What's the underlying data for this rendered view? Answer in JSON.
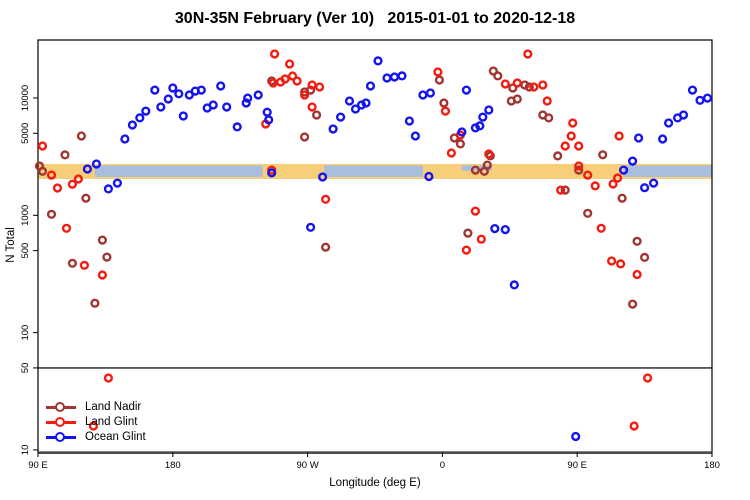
{
  "title": "30N-35N February (Ver 10)   2015-01-01 to 2020-12-18",
  "axes": {
    "xlabel": "Longitude (deg E)",
    "ylabel": "N Total",
    "x_note": "longitude unwrapped, 90E eastward to 180 (values 90..540)",
    "x_range": [
      90,
      540
    ],
    "x_ticks": [
      {
        "v": 90,
        "label": "90 E"
      },
      {
        "v": 180,
        "label": "180"
      },
      {
        "v": 270,
        "label": "90 W"
      },
      {
        "v": 360,
        "label": "0"
      },
      {
        "v": 450,
        "label": "90 E"
      },
      {
        "v": 540,
        "label": "180"
      }
    ],
    "y_scale": "log10",
    "y_range": [
      10,
      31000
    ],
    "y_ticks": [
      10,
      50,
      100,
      500,
      1000,
      5000,
      10000
    ]
  },
  "reference_line": {
    "n": 50,
    "color": "#3f3f3f"
  },
  "bands": {
    "gold": {
      "color": "#F7CE79",
      "lon": [
        90,
        540
      ],
      "n_low": 2040,
      "n_high": 2740
    },
    "blue": {
      "color": "#A9BEDC",
      "n_low": 2120,
      "n_high": 2660,
      "segments_lon": [
        [
          128,
          240
        ],
        [
          281,
          347
        ],
        [
          481,
          540
        ]
      ],
      "notch": {
        "lon": [
          373,
          393
        ],
        "n_low": 2400,
        "n_high": 2660
      }
    }
  },
  "legend": {
    "items": [
      {
        "label": "Land Nadir",
        "color": "#A13532"
      },
      {
        "label": "Land Glint",
        "color": "#F51B0F"
      },
      {
        "label": "Ocean Glint",
        "color": "#1414F0"
      }
    ]
  },
  "chart_data": {
    "type": "scatter",
    "title": "30N-35N February (Ver 10)   2015-01-01 to 2020-12-18",
    "xlabel": "Longitude (deg E)",
    "ylabel": "N Total",
    "x_encoding": "degrees east unwrapped (90..540)",
    "series": [
      {
        "name": "Land Nadir",
        "color": "#A13532",
        "points": [
          [
            119,
            4740
          ],
          [
            108,
            3270
          ],
          [
            91,
            2630
          ],
          [
            93,
            2370
          ],
          [
            122,
            1400
          ],
          [
            99,
            1020
          ],
          [
            133,
            615
          ],
          [
            136,
            440
          ],
          [
            113,
            390
          ],
          [
            128,
            178
          ],
          [
            246,
            13960
          ],
          [
            268,
            11250
          ],
          [
            272,
            11680
          ],
          [
            276,
            7160
          ],
          [
            268,
            4650
          ],
          [
            282,
            535
          ],
          [
            358,
            14240
          ],
          [
            361,
            9070
          ],
          [
            368,
            4560
          ],
          [
            372,
            4060
          ],
          [
            382,
            2430
          ],
          [
            388,
            2370
          ],
          [
            394,
            16980
          ],
          [
            397,
            15420
          ],
          [
            407,
            12170
          ],
          [
            415,
            12900
          ],
          [
            418,
            12410
          ],
          [
            406,
            9420
          ],
          [
            410,
            9800
          ],
          [
            427,
            7160
          ],
          [
            431,
            6760
          ],
          [
            437,
            3210
          ],
          [
            442,
            1640
          ],
          [
            467,
            3280
          ],
          [
            480,
            1400
          ],
          [
            390,
            2680
          ],
          [
            392,
            3210
          ],
          [
            451,
            2430
          ],
          [
            457,
            1040
          ],
          [
            490,
            600
          ],
          [
            495,
            438
          ],
          [
            487,
            175
          ],
          [
            377,
            705
          ]
        ]
      },
      {
        "name": "Land Glint",
        "color": "#F51B0F",
        "points": [
          [
            93,
            3900
          ],
          [
            99,
            2200
          ],
          [
            103,
            1710
          ],
          [
            113,
            1840
          ],
          [
            117,
            2040
          ],
          [
            109,
            775
          ],
          [
            121,
            375
          ],
          [
            133,
            310
          ],
          [
            137,
            41
          ],
          [
            127,
            16
          ],
          [
            242,
            6000
          ],
          [
            248,
            23700
          ],
          [
            258,
            19500
          ],
          [
            260,
            15400
          ],
          [
            263,
            13960
          ],
          [
            255,
            14530
          ],
          [
            247,
            13420
          ],
          [
            252,
            13690
          ],
          [
            273,
            12900
          ],
          [
            278,
            12410
          ],
          [
            268,
            10610
          ],
          [
            273,
            8380
          ],
          [
            357,
            16650
          ],
          [
            362,
            7740
          ],
          [
            372,
            4840
          ],
          [
            366,
            3400
          ],
          [
            391,
            3330
          ],
          [
            402,
            13170
          ],
          [
            410,
            13420
          ],
          [
            421,
            12410
          ],
          [
            427,
            12900
          ],
          [
            417,
            23700
          ],
          [
            430,
            9420
          ],
          [
            439,
            1640
          ],
          [
            447,
            6120
          ],
          [
            446,
            4740
          ],
          [
            451,
            3900
          ],
          [
            442,
            3900
          ],
          [
            451,
            2630
          ],
          [
            457,
            2200
          ],
          [
            462,
            1780
          ],
          [
            474,
            1850
          ],
          [
            477,
            2080
          ],
          [
            478,
            4740
          ],
          [
            466,
            775
          ],
          [
            473,
            408
          ],
          [
            479,
            385
          ],
          [
            490,
            313
          ],
          [
            497,
            41
          ],
          [
            488,
            16
          ],
          [
            282,
            1370
          ],
          [
            382,
            1085
          ],
          [
            386,
            625
          ],
          [
            376,
            505
          ],
          [
            246,
            2430
          ]
        ]
      },
      {
        "name": "Ocean Glint",
        "color": "#1414F0",
        "points": [
          [
            168,
            11680
          ],
          [
            180,
            12170
          ],
          [
            184,
            10860
          ],
          [
            177,
            9800
          ],
          [
            172,
            8380
          ],
          [
            162,
            7740
          ],
          [
            158,
            6760
          ],
          [
            153,
            5890
          ],
          [
            148,
            4470
          ],
          [
            191,
            10610
          ],
          [
            195,
            11460
          ],
          [
            199,
            11680
          ],
          [
            187,
            7030
          ],
          [
            203,
            8220
          ],
          [
            207,
            8710
          ],
          [
            212,
            12660
          ],
          [
            216,
            8380
          ],
          [
            223,
            5670
          ],
          [
            229,
            9070
          ],
          [
            230,
            9990
          ],
          [
            237,
            10610
          ],
          [
            243,
            7560
          ],
          [
            244,
            6500
          ],
          [
            123,
            2480
          ],
          [
            129,
            2740
          ],
          [
            137,
            1680
          ],
          [
            143,
            1880
          ],
          [
            246,
            2300
          ],
          [
            280,
            2120
          ],
          [
            272,
            790
          ],
          [
            298,
            9420
          ],
          [
            306,
            8710
          ],
          [
            309,
            9070
          ],
          [
            302,
            8060
          ],
          [
            292,
            6880
          ],
          [
            287,
            5440
          ],
          [
            312,
            12660
          ],
          [
            317,
            20700
          ],
          [
            323,
            14820
          ],
          [
            328,
            15110
          ],
          [
            333,
            15420
          ],
          [
            347,
            10610
          ],
          [
            352,
            11040
          ],
          [
            338,
            6370
          ],
          [
            342,
            4740
          ],
          [
            376,
            11680
          ],
          [
            373,
            5130
          ],
          [
            382,
            5560
          ],
          [
            387,
            6880
          ],
          [
            385,
            5780
          ],
          [
            391,
            7900
          ],
          [
            351,
            2140
          ],
          [
            395,
            770
          ],
          [
            402,
            755
          ],
          [
            408,
            255
          ],
          [
            449,
            13
          ],
          [
            481,
            2430
          ],
          [
            487,
            2900
          ],
          [
            491,
            4560
          ],
          [
            495,
            1720
          ],
          [
            501,
            1880
          ],
          [
            507,
            4470
          ],
          [
            511,
            6120
          ],
          [
            517,
            6760
          ],
          [
            521,
            7160
          ],
          [
            527,
            11680
          ],
          [
            532,
            9560
          ],
          [
            537,
            9990
          ]
        ]
      }
    ]
  }
}
